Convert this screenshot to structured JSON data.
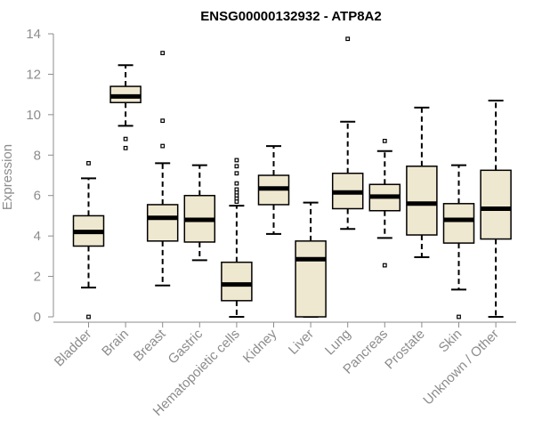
{
  "chart_data": {
    "type": "box",
    "title": "ENSG00000132932 - ATP8A2",
    "xlabel": "",
    "ylabel": "Expression",
    "ylim": [
      0,
      14
    ],
    "yticks": [
      0,
      2,
      4,
      6,
      8,
      10,
      12,
      14
    ],
    "box_fill": "#efe8d0",
    "categories": [
      "Bladder",
      "Brain",
      "Breast",
      "Gastric",
      "Hematopoietic cells",
      "Kidney",
      "Liver",
      "Lung",
      "Pancreas",
      "Prostate",
      "Skin",
      "Unknown / Other"
    ],
    "boxes": [
      {
        "q1": 3.5,
        "median": 4.2,
        "q3": 5.0,
        "whisker_low": 1.45,
        "whisker_high": 6.85,
        "outliers": [
          7.6,
          0.0
        ]
      },
      {
        "q1": 10.6,
        "median": 10.9,
        "q3": 11.4,
        "whisker_low": 9.45,
        "whisker_high": 12.45,
        "outliers": [
          8.8,
          8.35
        ]
      },
      {
        "q1": 3.75,
        "median": 4.9,
        "q3": 5.55,
        "whisker_low": 1.55,
        "whisker_high": 7.6,
        "outliers": [
          13.05,
          9.7,
          8.45
        ]
      },
      {
        "q1": 3.7,
        "median": 4.8,
        "q3": 6.0,
        "whisker_low": 2.8,
        "whisker_high": 7.5,
        "outliers": []
      },
      {
        "q1": 0.8,
        "median": 1.6,
        "q3": 2.7,
        "whisker_low": 0.0,
        "whisker_high": 5.5,
        "outliers": [
          7.75,
          7.45,
          7.1,
          6.6,
          6.3,
          6.15,
          6.0,
          5.85,
          5.7
        ]
      },
      {
        "q1": 5.55,
        "median": 6.35,
        "q3": 7.0,
        "whisker_low": 4.1,
        "whisker_high": 8.45,
        "outliers": []
      },
      {
        "q1": 0.0,
        "median": 2.85,
        "q3": 3.75,
        "whisker_low": 0.0,
        "whisker_high": 5.65,
        "outliers": []
      },
      {
        "q1": 5.35,
        "median": 6.15,
        "q3": 7.1,
        "whisker_low": 4.35,
        "whisker_high": 9.65,
        "outliers": [
          13.75
        ]
      },
      {
        "q1": 5.25,
        "median": 5.95,
        "q3": 6.55,
        "whisker_low": 3.9,
        "whisker_high": 8.2,
        "outliers": [
          8.7,
          2.55
        ]
      },
      {
        "q1": 4.05,
        "median": 5.6,
        "q3": 7.45,
        "whisker_low": 2.95,
        "whisker_high": 10.35,
        "outliers": []
      },
      {
        "q1": 3.65,
        "median": 4.8,
        "q3": 5.6,
        "whisker_low": 1.35,
        "whisker_high": 7.5,
        "outliers": [
          0.0
        ]
      },
      {
        "q1": 3.85,
        "median": 5.35,
        "q3": 7.25,
        "whisker_low": 0.0,
        "whisker_high": 10.7,
        "outliers": []
      }
    ]
  }
}
